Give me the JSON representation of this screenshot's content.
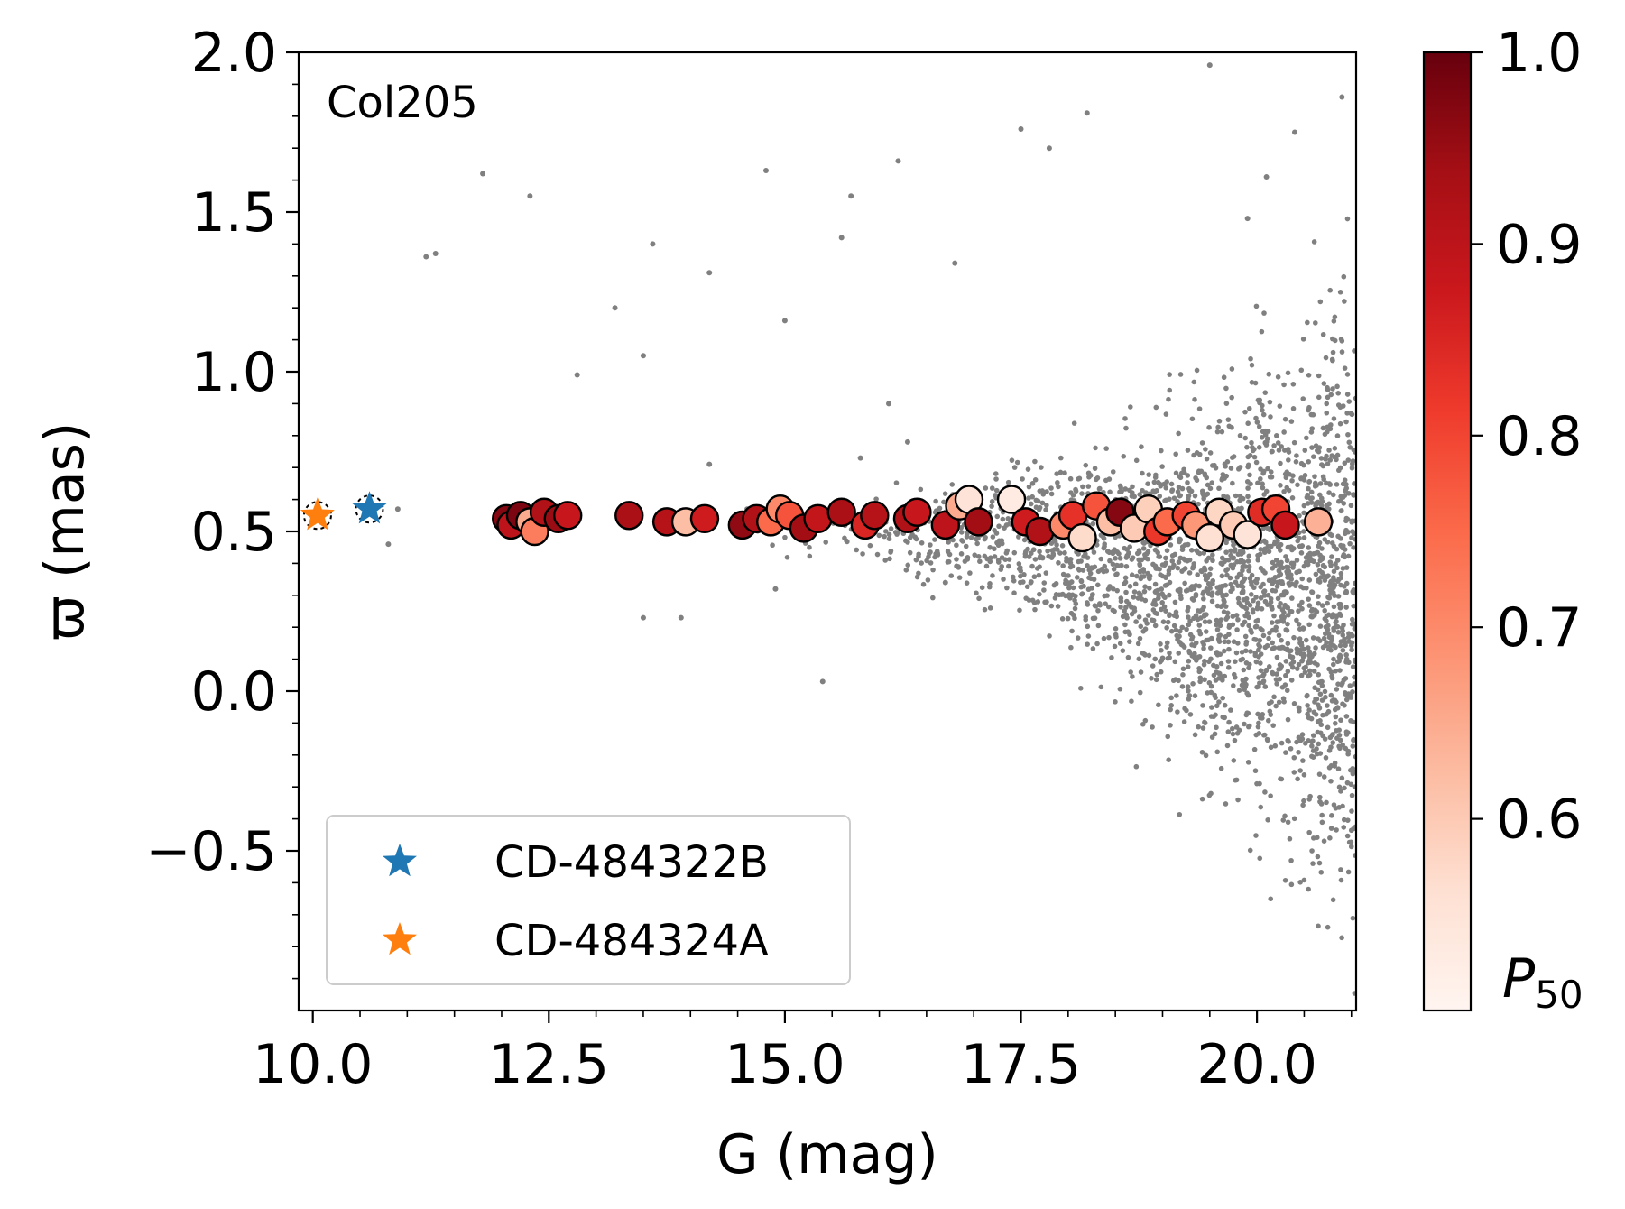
{
  "chart_data": {
    "type": "scatter",
    "panel_label": "Col205",
    "xlabel": "G (mag)",
    "ylabel": "ϖ (mas)",
    "xlim": [
      9.85,
      21.05
    ],
    "ylim": [
      -1.0,
      2.0
    ],
    "x_ticks": [
      10.0,
      12.5,
      15.0,
      17.5,
      20.0
    ],
    "x_tick_labels": [
      "10.0",
      "12.5",
      "15.0",
      "17.5",
      "20.0"
    ],
    "y_ticks": [
      -0.5,
      0.0,
      0.5,
      1.0,
      1.5,
      2.0
    ],
    "y_tick_labels": [
      "−0.5",
      "0.0",
      "0.5",
      "1.0",
      "1.5",
      "2.0"
    ],
    "grid": false,
    "legend_position": "lower-left",
    "colorbar": {
      "label": "P50",
      "colormap": "Reds",
      "range": [
        0.5,
        1.0
      ],
      "ticks": [
        0.6,
        0.7,
        0.8,
        0.9,
        1.0
      ],
      "tick_labels": [
        "0.6",
        "0.7",
        "0.8",
        "0.9",
        "1.0"
      ]
    },
    "background": {
      "name": "field",
      "color": "#808080",
      "description_points": [
        [
          11.3,
          1.37
        ],
        [
          11.2,
          1.36
        ],
        [
          11.8,
          1.62
        ],
        [
          10.9,
          0.57
        ],
        [
          10.8,
          0.46
        ],
        [
          12.3,
          1.55
        ],
        [
          13.2,
          1.2
        ],
        [
          13.5,
          1.05
        ],
        [
          12.8,
          0.99
        ],
        [
          13.6,
          1.4
        ],
        [
          14.2,
          1.31
        ],
        [
          15.0,
          1.16
        ],
        [
          15.6,
          1.42
        ],
        [
          15.7,
          1.55
        ],
        [
          14.8,
          1.63
        ],
        [
          16.2,
          1.66
        ],
        [
          16.8,
          1.34
        ],
        [
          17.5,
          1.76
        ],
        [
          17.8,
          1.7
        ],
        [
          18.2,
          1.81
        ],
        [
          19.5,
          1.96
        ],
        [
          20.1,
          1.61
        ],
        [
          20.4,
          1.75
        ],
        [
          20.9,
          1.86
        ],
        [
          19.9,
          1.48
        ],
        [
          13.9,
          0.23
        ],
        [
          13.5,
          0.23
        ],
        [
          14.2,
          0.71
        ],
        [
          14.6,
          0.57
        ],
        [
          15.4,
          0.03
        ],
        [
          14.9,
          0.32
        ],
        [
          15.8,
          0.73
        ],
        [
          16.1,
          0.9
        ],
        [
          16.3,
          0.78
        ],
        [
          16.7,
          0.34
        ]
      ]
    },
    "members": [
      {
        "x": 12.05,
        "y": 0.54,
        "p": 0.97
      },
      {
        "x": 12.1,
        "y": 0.52,
        "p": 0.9
      },
      {
        "x": 12.2,
        "y": 0.55,
        "p": 0.98
      },
      {
        "x": 12.3,
        "y": 0.53,
        "p": 0.65
      },
      {
        "x": 12.35,
        "y": 0.5,
        "p": 0.72
      },
      {
        "x": 12.45,
        "y": 0.56,
        "p": 0.92
      },
      {
        "x": 12.6,
        "y": 0.54,
        "p": 0.95
      },
      {
        "x": 12.7,
        "y": 0.55,
        "p": 0.88
      },
      {
        "x": 13.35,
        "y": 0.55,
        "p": 0.93
      },
      {
        "x": 13.75,
        "y": 0.53,
        "p": 0.91
      },
      {
        "x": 13.95,
        "y": 0.53,
        "p": 0.62
      },
      {
        "x": 14.15,
        "y": 0.54,
        "p": 0.87
      },
      {
        "x": 14.55,
        "y": 0.52,
        "p": 0.96
      },
      {
        "x": 14.7,
        "y": 0.54,
        "p": 0.92
      },
      {
        "x": 14.85,
        "y": 0.53,
        "p": 0.75
      },
      {
        "x": 14.95,
        "y": 0.57,
        "p": 0.7
      },
      {
        "x": 15.05,
        "y": 0.55,
        "p": 0.78
      },
      {
        "x": 15.2,
        "y": 0.51,
        "p": 0.94
      },
      {
        "x": 15.35,
        "y": 0.54,
        "p": 0.89
      },
      {
        "x": 15.6,
        "y": 0.56,
        "p": 0.93
      },
      {
        "x": 15.85,
        "y": 0.52,
        "p": 0.85
      },
      {
        "x": 15.95,
        "y": 0.55,
        "p": 0.91
      },
      {
        "x": 16.3,
        "y": 0.54,
        "p": 0.92
      },
      {
        "x": 16.4,
        "y": 0.56,
        "p": 0.88
      },
      {
        "x": 16.7,
        "y": 0.52,
        "p": 0.9
      },
      {
        "x": 16.85,
        "y": 0.58,
        "p": 0.65
      },
      {
        "x": 16.95,
        "y": 0.6,
        "p": 0.55
      },
      {
        "x": 17.05,
        "y": 0.53,
        "p": 0.94
      },
      {
        "x": 17.4,
        "y": 0.6,
        "p": 0.53
      },
      {
        "x": 17.55,
        "y": 0.53,
        "p": 0.87
      },
      {
        "x": 17.7,
        "y": 0.5,
        "p": 0.92
      },
      {
        "x": 17.95,
        "y": 0.52,
        "p": 0.7
      },
      {
        "x": 18.05,
        "y": 0.55,
        "p": 0.83
      },
      {
        "x": 18.15,
        "y": 0.48,
        "p": 0.57
      },
      {
        "x": 18.3,
        "y": 0.58,
        "p": 0.78
      },
      {
        "x": 18.45,
        "y": 0.53,
        "p": 0.62
      },
      {
        "x": 18.55,
        "y": 0.56,
        "p": 0.97
      },
      {
        "x": 18.7,
        "y": 0.51,
        "p": 0.6
      },
      {
        "x": 18.85,
        "y": 0.57,
        "p": 0.59
      },
      {
        "x": 18.95,
        "y": 0.5,
        "p": 0.82
      },
      {
        "x": 19.05,
        "y": 0.53,
        "p": 0.75
      },
      {
        "x": 19.25,
        "y": 0.55,
        "p": 0.8
      },
      {
        "x": 19.35,
        "y": 0.52,
        "p": 0.68
      },
      {
        "x": 19.5,
        "y": 0.48,
        "p": 0.56
      },
      {
        "x": 19.6,
        "y": 0.56,
        "p": 0.58
      },
      {
        "x": 19.75,
        "y": 0.52,
        "p": 0.6
      },
      {
        "x": 19.9,
        "y": 0.49,
        "p": 0.55
      },
      {
        "x": 20.05,
        "y": 0.56,
        "p": 0.84
      },
      {
        "x": 20.2,
        "y": 0.57,
        "p": 0.8
      },
      {
        "x": 20.3,
        "y": 0.52,
        "p": 0.88
      },
      {
        "x": 20.65,
        "y": 0.53,
        "p": 0.64
      }
    ],
    "series": [
      {
        "name": "CD-484322B",
        "marker": "star",
        "color": "#1f77b4",
        "x": [
          10.6
        ],
        "y": [
          0.57
        ]
      },
      {
        "name": "CD-484324A",
        "marker": "star",
        "color": "#ff7f0e",
        "x": [
          10.05
        ],
        "y": [
          0.55
        ]
      }
    ]
  }
}
